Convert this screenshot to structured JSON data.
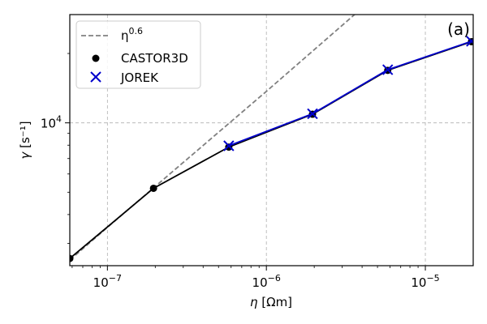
{
  "chart_data": {
    "type": "line",
    "panel_label": "(a)",
    "x_scale": "log",
    "y_scale": "log",
    "xlim": [
      5.8e-08,
      2e-05
    ],
    "ylim": [
      2400,
      29500
    ],
    "grid": true,
    "legend_position": "top-left",
    "xlabel": {
      "symbol": "η",
      "unit": "[Ωm]"
    },
    "ylabel": {
      "symbol": "γ",
      "unit": "[s⁻¹]"
    },
    "x_ticks": [
      {
        "value": 1e-07,
        "base": "10",
        "exp": "−7"
      },
      {
        "value": 1e-06,
        "base": "10",
        "exp": "−6"
      },
      {
        "value": 1e-05,
        "base": "10",
        "exp": "−5"
      }
    ],
    "y_ticks": [
      {
        "value": 10000,
        "base": "10",
        "exp": "4"
      }
    ],
    "series": [
      {
        "name": "η^0.6",
        "legend_base": "η",
        "legend_exp": "0.6",
        "kind": "reference",
        "color": "#808080",
        "style": "dashed",
        "x": [
          5.8e-08,
          1e-07,
          1e-06,
          1e-05
        ],
        "y": [
          2540,
          3520,
          13700,
          54600
        ]
      },
      {
        "name": "CASTOR3D",
        "kind": "data",
        "color": "#000000",
        "marker": "circle",
        "x": [
          5.8e-08,
          1.95e-07,
          5.8e-07,
          1.95e-06,
          5.8e-06,
          1.95e-05
        ],
        "y": [
          2580,
          5200,
          7850,
          10900,
          16900,
          22500
        ]
      },
      {
        "name": "JOREK",
        "kind": "data",
        "color": "#0000cc",
        "marker": "x",
        "x": [
          5.8e-07,
          1.95e-06,
          5.8e-06,
          1.95e-05
        ],
        "y": [
          7950,
          10950,
          17000,
          22600
        ]
      }
    ]
  }
}
